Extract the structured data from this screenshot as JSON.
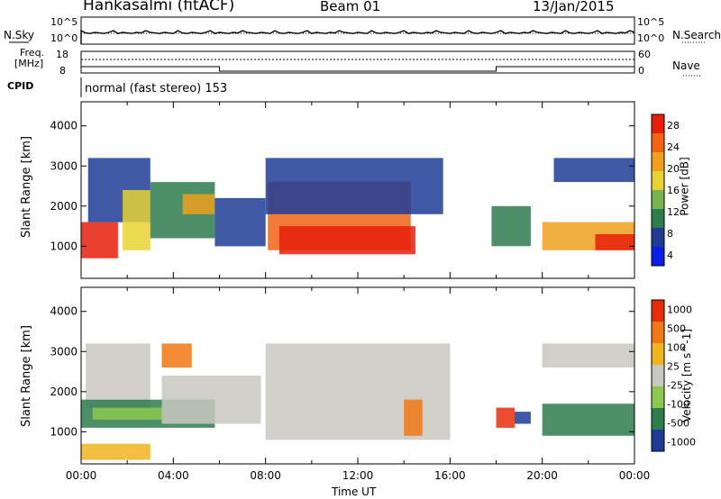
{
  "header": {
    "station": "Hankasalmi (fitACF)",
    "beam": "Beam 01",
    "date": "13/Jan/2015"
  },
  "top_panels": {
    "nsky_label": "N.Sky",
    "nsearch_label": "N.Search",
    "nsky_ticks": [
      "10^5",
      "10^0"
    ],
    "nsearch_ticks": [
      "10^5",
      "10^0"
    ],
    "freq_label": [
      "Freq.",
      "[MHz]"
    ],
    "freq_ticks": [
      "18",
      "8"
    ],
    "nave_ticks": [
      "60",
      "0"
    ],
    "nave_label": "Nave",
    "cpid_label": "CPID",
    "cpid_value": "normal (fast stereo) 153"
  },
  "colors": {
    "power": [
      "#0a1ee6",
      "#1e3c96",
      "#2e7b4e",
      "#78b450",
      "#e6d232",
      "#f0a01e",
      "#f06414",
      "#e61e0a"
    ],
    "velocity": [
      "#1e3c96",
      "#2e7b4e",
      "#8cc850",
      "#c8c8c0",
      "#f0b41e",
      "#f07814",
      "#e62d0a"
    ]
  },
  "chart_data": [
    {
      "type": "heatmap",
      "title": "",
      "xlabel": "",
      "ylabel": "Slant Range [km]",
      "xlim": [
        "00:00",
        "24:00"
      ],
      "ylim": [
        200,
        4600
      ],
      "yticks": [
        "4000",
        "3000",
        "2000",
        "1000"
      ],
      "colorbar_label": "Power [dB]",
      "colorbar_ticks": [
        "28",
        "24",
        "20",
        "16",
        "12",
        "8",
        "4"
      ],
      "regions": [
        {
          "t0": 0.0,
          "t1": 1.6,
          "r0": 700,
          "r1": 1600,
          "level": 7
        },
        {
          "t0": 0.3,
          "t1": 3.0,
          "r0": 1600,
          "r1": 3200,
          "level": 1
        },
        {
          "t0": 1.8,
          "t1": 3.0,
          "r0": 900,
          "r1": 2400,
          "level": 4
        },
        {
          "t0": 3.0,
          "t1": 5.8,
          "r0": 1200,
          "r1": 2600,
          "level": 2
        },
        {
          "t0": 4.4,
          "t1": 5.8,
          "r0": 1800,
          "r1": 2300,
          "level": 5
        },
        {
          "t0": 5.8,
          "t1": 8.0,
          "r0": 1000,
          "r1": 2200,
          "level": 1
        },
        {
          "t0": 8.1,
          "t1": 14.3,
          "r0": 900,
          "r1": 2600,
          "level": 6
        },
        {
          "t0": 8.6,
          "t1": 14.5,
          "r0": 800,
          "r1": 1500,
          "level": 7
        },
        {
          "t0": 8.0,
          "t1": 15.7,
          "r0": 1800,
          "r1": 3200,
          "level": 1
        },
        {
          "t0": 17.8,
          "t1": 19.5,
          "r0": 1000,
          "r1": 2000,
          "level": 2
        },
        {
          "t0": 20.0,
          "t1": 24.0,
          "r0": 900,
          "r1": 1600,
          "level": 5
        },
        {
          "t0": 22.3,
          "t1": 24.0,
          "r0": 900,
          "r1": 1300,
          "level": 7
        },
        {
          "t0": 20.5,
          "t1": 24.0,
          "r0": 2600,
          "r1": 3200,
          "level": 1
        }
      ]
    },
    {
      "type": "heatmap",
      "title": "",
      "xlabel": "Time UT",
      "ylabel": "Slant Range [km]",
      "xlim": [
        "00:00",
        "24:00"
      ],
      "ylim": [
        200,
        4600
      ],
      "yticks": [
        "4000",
        "3000",
        "2000",
        "1000"
      ],
      "xticks": [
        "00:00",
        "04:00",
        "08:00",
        "12:00",
        "16:00",
        "20:00",
        "00:00"
      ],
      "colorbar_label": "Velocity [m s^-1]",
      "colorbar_ticks": [
        "1000",
        "500",
        "100",
        "25",
        "-25",
        "-100",
        "-500",
        "-1000"
      ],
      "regions": [
        {
          "t0": 0.2,
          "t1": 3.0,
          "r0": 1600,
          "r1": 3200,
          "level": 3
        },
        {
          "t0": 0.0,
          "t1": 5.8,
          "r0": 1100,
          "r1": 1800,
          "level": 1
        },
        {
          "t0": 0.5,
          "t1": 3.5,
          "r0": 1300,
          "r1": 1600,
          "level": 2
        },
        {
          "t0": 3.5,
          "t1": 7.8,
          "r0": 1200,
          "r1": 2400,
          "level": 3
        },
        {
          "t0": 3.5,
          "t1": 4.8,
          "r0": 2600,
          "r1": 3200,
          "level": 5
        },
        {
          "t0": 8.0,
          "t1": 16.0,
          "r0": 800,
          "r1": 3200,
          "level": 3
        },
        {
          "t0": 14.0,
          "t1": 14.8,
          "r0": 900,
          "r1": 1800,
          "level": 5
        },
        {
          "t0": 18.0,
          "t1": 18.8,
          "r0": 1100,
          "r1": 1600,
          "level": 6
        },
        {
          "t0": 18.8,
          "t1": 19.5,
          "r0": 1200,
          "r1": 1500,
          "level": 0
        },
        {
          "t0": 20.0,
          "t1": 24.0,
          "r0": 900,
          "r1": 1700,
          "level": 1
        },
        {
          "t0": 20.0,
          "t1": 24.0,
          "r0": 2600,
          "r1": 3200,
          "level": 3
        },
        {
          "t0": 0.0,
          "t1": 3.0,
          "r0": 300,
          "r1": 700,
          "level": 4
        }
      ]
    }
  ]
}
